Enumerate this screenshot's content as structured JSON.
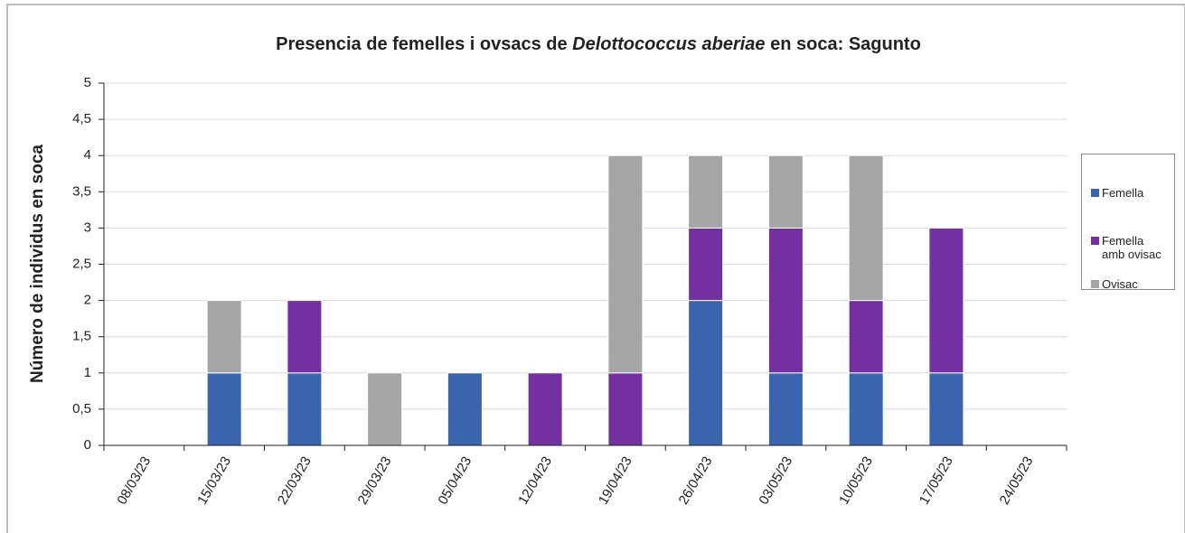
{
  "chart_data": {
    "type": "stacked_bar",
    "title": [
      "Presencia de femelles i ovsacs de ",
      "Delottococcus aberiae",
      " en soca: Sagunto"
    ],
    "y_label": "Número de individus en soca",
    "categories": [
      "08/03/23",
      "15/03/23",
      "22/03/23",
      "29/03/23",
      "05/04/23",
      "12/04/23",
      "19/04/23",
      "26/04/23",
      "03/05/23",
      "10/05/23",
      "17/05/23",
      "24/05/23"
    ],
    "series": [
      {
        "name": "Femella",
        "color": "#3a64ad",
        "values": [
          0,
          1,
          1,
          0,
          1,
          0,
          0,
          2,
          1,
          1,
          1,
          0
        ]
      },
      {
        "name": "Femella amb ovisac",
        "color": "#7330a0",
        "values": [
          0,
          0,
          1,
          0,
          0,
          1,
          1,
          1,
          2,
          1,
          2,
          0
        ]
      },
      {
        "name": "Ovisac",
        "color": "#a6a6a6",
        "values": [
          0,
          1,
          0,
          1,
          0,
          0,
          3,
          1,
          1,
          2,
          0,
          0
        ]
      }
    ],
    "ylim": [
      0,
      5
    ],
    "yticks": [
      0,
      {
        "value": 0.5,
        "label": "0,5"
      },
      1,
      {
        "value": 1.5,
        "label": "1,5"
      },
      2,
      {
        "value": 2.5,
        "label": "2,5"
      },
      3,
      {
        "value": 3.5,
        "label": "3,5"
      },
      4,
      {
        "value": 4.5,
        "label": "4,5"
      },
      5
    ],
    "grid": true,
    "legend": "right"
  }
}
